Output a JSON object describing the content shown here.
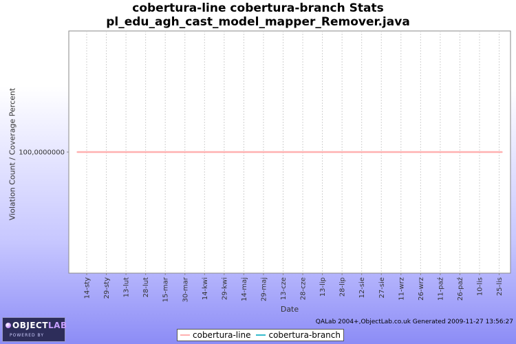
{
  "chart_data": {
    "type": "line",
    "title": "cobertura-line cobertura-branch  Stats",
    "subtitle": "pl_edu_agh_cast_model_mapper_Remover.java",
    "xlabel": "Date",
    "ylabel": "Violation Count / Coverage Percent",
    "categories": [
      "14-sty",
      "29-sty",
      "13-lut",
      "28-lut",
      "15-mar",
      "30-mar",
      "14-kwi",
      "29-kwi",
      "14-maj",
      "29-maj",
      "13-cze",
      "28-cze",
      "13-lip",
      "28-lip",
      "12-sie",
      "27-sie",
      "11-wrz",
      "26-wrz",
      "11-paź",
      "26-paź",
      "10-lis",
      "25-lis"
    ],
    "y_ticks": [
      "100,0000000"
    ],
    "series": [
      {
        "name": "cobertura-line",
        "color": "#ffb0b0",
        "start": "2009-01-07",
        "end": "2009-11-27",
        "value": 100
      },
      {
        "name": "cobertura-branch",
        "color": "#33bbcc",
        "start": "2009-01-07",
        "end": "2009-11-27",
        "value": 100
      }
    ],
    "ylim": [
      0,
      200
    ],
    "grid": {
      "vertical": true,
      "horizontal": false
    },
    "legend_position": "bottom"
  },
  "footer": "QALab 2004+,ObjectLab.co.uk Generated 2009-11-27 13:56:27",
  "logo": {
    "brand_part1": "OBJECT",
    "brand_part2": "LAB",
    "tagline": "POWERED BY"
  }
}
